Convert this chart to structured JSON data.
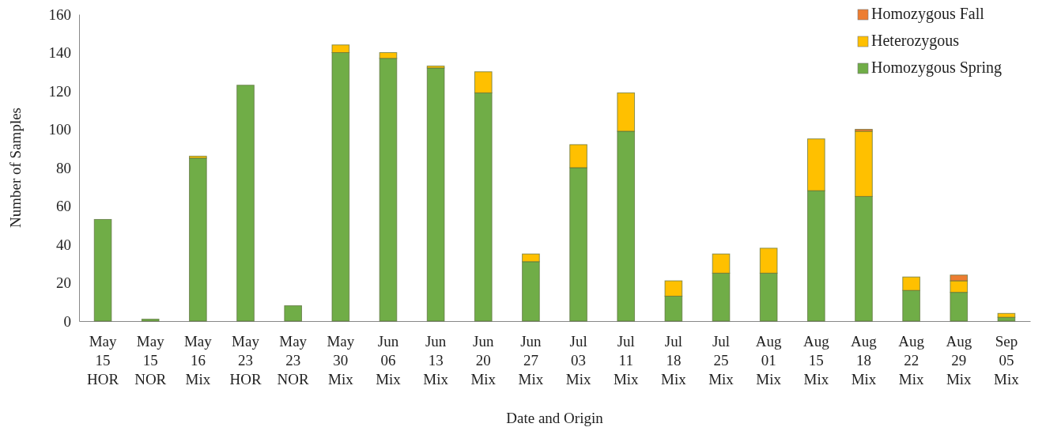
{
  "chart_data": {
    "type": "bar",
    "stacked": true,
    "xlabel": "Date and Origin",
    "ylabel": "Number of Samples",
    "categories": [
      "May\n15\nHOR",
      "May\n15\nNOR",
      "May\n16\nMix",
      "May\n23\nHOR",
      "May\n23\nNOR",
      "May\n30\nMix",
      "Jun\n06\nMix",
      "Jun\n13\nMix",
      "Jun\n20\nMix",
      "Jun\n27\nMix",
      "Jul\n03\nMix",
      "Jul\n11\nMix",
      "Jul\n18\nMix",
      "Jul\n25\nMix",
      "Aug\n01\nMix",
      "Aug\n15\nMix",
      "Aug\n18\nMix",
      "Aug\n22\nMix",
      "Aug\n29\nMix",
      "Sep\n05\nMix"
    ],
    "series": [
      {
        "name": "Homozygous Spring",
        "color": "#70ad47",
        "values": [
          53,
          1,
          85,
          123,
          8,
          140,
          137,
          132,
          119,
          31,
          80,
          99,
          13,
          25,
          25,
          68,
          65,
          16,
          15,
          2
        ]
      },
      {
        "name": "Heterozygous",
        "color": "#ffc000",
        "values": [
          0,
          0,
          1,
          0,
          0,
          4,
          3,
          1,
          11,
          4,
          12,
          20,
          8,
          10,
          13,
          27,
          34,
          7,
          6,
          2
        ]
      },
      {
        "name": "Homozygous Fall",
        "color": "#ed7d31",
        "values": [
          0,
          0,
          0,
          0,
          0,
          0,
          0,
          0,
          0,
          0,
          0,
          0,
          0,
          0,
          0,
          0,
          1,
          0,
          3,
          0
        ]
      }
    ],
    "ylim": [
      0,
      160
    ],
    "yticks": [
      0,
      20,
      40,
      60,
      80,
      100,
      120,
      140,
      160
    ],
    "grid": false,
    "legend": "top right"
  }
}
